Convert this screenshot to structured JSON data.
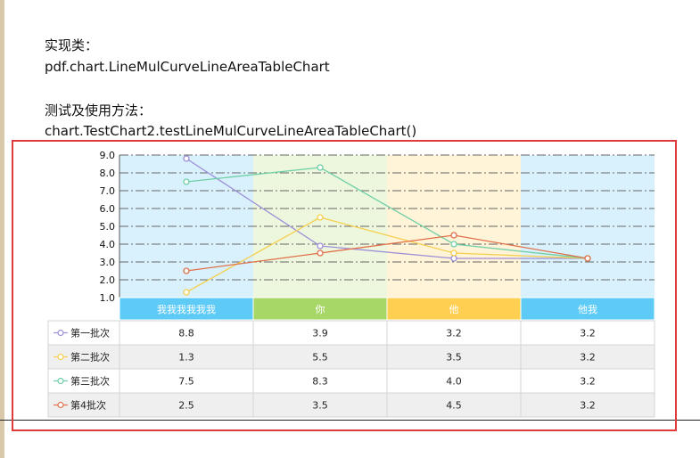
{
  "doc": {
    "impl_label": "实现类：",
    "impl_class": "pdf.chart.LineMulCurveLineAreaTableChart",
    "usage_label": "测试及使用方法：",
    "usage_call": "chart.TestChart2.testLineMulCurveLineAreaTableChart()"
  },
  "colors": {
    "band_blue": "#d9f1fd",
    "band_green": "#edf7dd",
    "band_yellow": "#fff3d8",
    "header_blue": "#5ecbf7",
    "header_green": "#a7d766",
    "header_yellow": "#ffcf52",
    "frame_red": "#e03a3a"
  },
  "chart_data": {
    "type": "line",
    "title": "",
    "xlabel": "",
    "ylabel": "",
    "ylim": [
      1.0,
      9.0
    ],
    "yticks": [
      "1.0",
      "2.0",
      "3.0",
      "4.0",
      "5.0",
      "6.0",
      "7.0",
      "8.0",
      "9.0"
    ],
    "grid": true,
    "categories": [
      "我我我我我我",
      "你",
      "他",
      "他我"
    ],
    "series": [
      {
        "name": "第一批次",
        "color": "#9d8fd8",
        "values": [
          8.8,
          3.9,
          3.2,
          3.2
        ],
        "labels": [
          "8.8",
          "3.9",
          "3.2",
          "3.2"
        ]
      },
      {
        "name": "第二批次",
        "color": "#f6cf4e",
        "values": [
          1.3,
          5.5,
          3.5,
          3.2
        ],
        "labels": [
          "1.3",
          "5.5",
          "3.5",
          "3.2"
        ]
      },
      {
        "name": "第三批次",
        "color": "#6fcfa6",
        "values": [
          7.5,
          8.3,
          4.0,
          3.2
        ],
        "labels": [
          "7.5",
          "8.3",
          "4.0",
          "3.2"
        ]
      },
      {
        "name": "第4批次",
        "color": "#e0714a",
        "values": [
          2.5,
          3.5,
          4.5,
          3.2
        ],
        "labels": [
          "2.5",
          "3.5",
          "4.5",
          "3.2"
        ]
      }
    ]
  }
}
